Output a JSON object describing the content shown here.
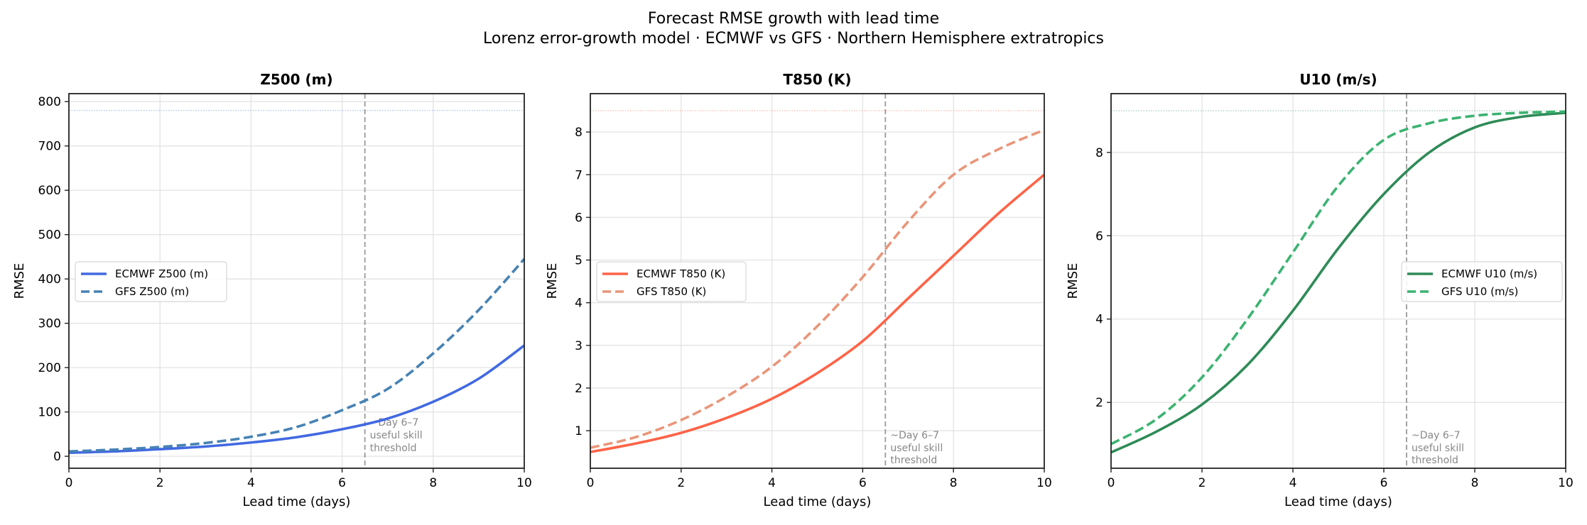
{
  "title": "Forecast RMSE growth with lead time",
  "subtitle": "Lorenz error-growth model  ·  ECMWF vs GFS  ·  Northern Hemisphere extratropics",
  "chart_data": [
    {
      "type": "line",
      "title": "Z500  (m)",
      "xlabel": "Lead time (days)",
      "ylabel": "RMSE",
      "xlim": [
        0,
        10
      ],
      "ylim": [
        -27,
        818
      ],
      "xticks": [
        0,
        2,
        4,
        6,
        8,
        10
      ],
      "yticks": [
        0,
        100,
        200,
        300,
        400,
        500,
        600,
        700,
        800
      ],
      "grid": true,
      "legend_position": "center-left",
      "saturation": 780,
      "threshold_day": 6.5,
      "annotation": [
        "~Day 6–7",
        "useful skill",
        "threshold"
      ],
      "x": [
        0,
        1,
        2,
        3,
        4,
        5,
        6,
        7,
        8,
        9,
        10
      ],
      "series": [
        {
          "name": "ECMWF  Z500  (m)",
          "style": "solid",
          "color": "#4169e1",
          "values": [
            8,
            11,
            16,
            22,
            31,
            43,
            61,
            85,
            123,
            175,
            250
          ]
        },
        {
          "name": "GFS    Z500  (m)",
          "style": "dashed",
          "color": "#4682b4",
          "values": [
            11,
            15,
            21,
            30,
            44,
            66,
            104,
            152,
            232,
            330,
            445
          ]
        }
      ]
    },
    {
      "type": "line",
      "title": "T850  (K)",
      "xlabel": "Lead time (days)",
      "ylabel": "RMSE",
      "xlim": [
        0,
        10
      ],
      "ylim": [
        0.12,
        8.9
      ],
      "xticks": [
        0,
        2,
        4,
        6,
        8,
        10
      ],
      "yticks": [
        1,
        2,
        3,
        4,
        5,
        6,
        7,
        8
      ],
      "grid": true,
      "legend_position": "center-left",
      "saturation": 8.5,
      "threshold_day": 6.5,
      "annotation": [
        "~Day 6–7",
        "useful skill",
        "threshold"
      ],
      "x": [
        0,
        1,
        2,
        3,
        4,
        5,
        6,
        7,
        8,
        9,
        10
      ],
      "series": [
        {
          "name": "ECMWF  T850  (K)",
          "style": "solid",
          "color": "#ff6347",
          "values": [
            0.5,
            0.7,
            0.95,
            1.3,
            1.75,
            2.35,
            3.1,
            4.1,
            5.1,
            6.1,
            7.0
          ]
        },
        {
          "name": "GFS    T850  (K)",
          "style": "dashed",
          "color": "#e9967a",
          "values": [
            0.6,
            0.85,
            1.25,
            1.8,
            2.5,
            3.45,
            4.6,
            5.9,
            7.0,
            7.6,
            8.05
          ]
        }
      ]
    },
    {
      "type": "line",
      "title": "U10   (m/s)",
      "xlabel": "Lead time (days)",
      "ylabel": "RMSE",
      "xlim": [
        0,
        10
      ],
      "ylim": [
        0.42,
        9.41
      ],
      "xticks": [
        0,
        2,
        4,
        6,
        8,
        10
      ],
      "yticks": [
        2,
        4,
        6,
        8
      ],
      "grid": true,
      "legend_position": "center-right",
      "saturation": 9.0,
      "threshold_day": 6.5,
      "annotation": [
        "~Day 6–7",
        "useful skill",
        "threshold"
      ],
      "x": [
        0,
        1,
        2,
        3,
        4,
        5,
        6,
        7,
        8,
        9,
        10
      ],
      "series": [
        {
          "name": "ECMWF  U10   (m/s)",
          "style": "solid",
          "color": "#2e8b57",
          "values": [
            0.8,
            1.3,
            1.95,
            2.9,
            4.2,
            5.7,
            7.0,
            8.0,
            8.6,
            8.85,
            8.95
          ]
        },
        {
          "name": "GFS    U10   (m/s)",
          "style": "dashed",
          "color": "#3cb371",
          "values": [
            1.0,
            1.6,
            2.6,
            4.0,
            5.6,
            7.2,
            8.3,
            8.7,
            8.88,
            8.95,
            8.98
          ]
        }
      ]
    }
  ]
}
